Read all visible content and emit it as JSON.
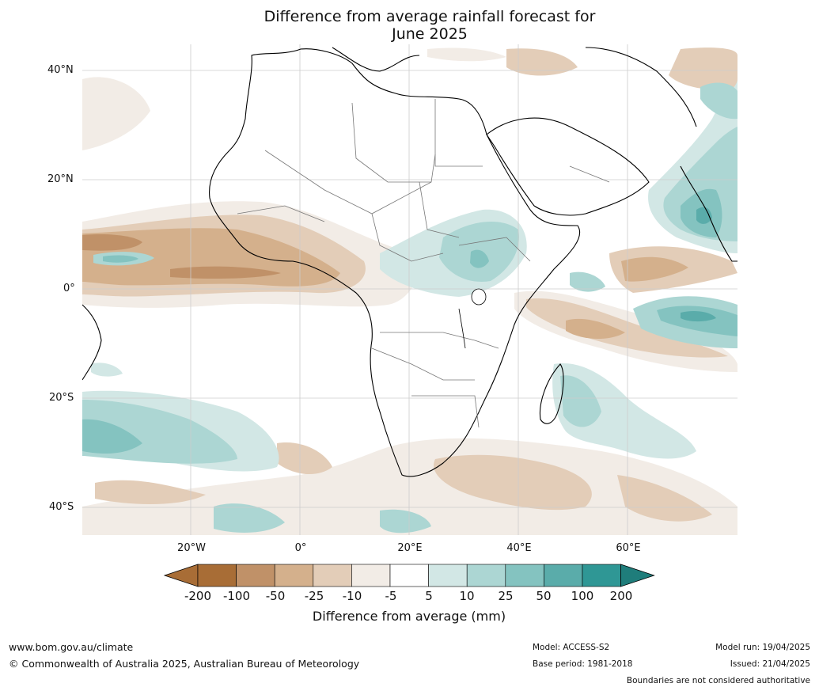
{
  "title_line1": "Difference from average rainfall forecast for",
  "title_line2": "June 2025",
  "lat_labels": [
    "40°N",
    "20°N",
    "0°",
    "20°S",
    "40°S"
  ],
  "lon_labels": [
    "20°W",
    "0°",
    "20°E",
    "40°E",
    "60°E"
  ],
  "colorbar": {
    "labels": [
      "-200",
      "-100",
      "-50",
      "-25",
      "-10",
      "-5",
      "5",
      "10",
      "25",
      "50",
      "100",
      "200"
    ],
    "colors": [
      "#a86d36",
      "#c09168",
      "#d4b08c",
      "#e3cdb8",
      "#f2ece6",
      "#ffffff",
      "#d2e7e5",
      "#acd6d3",
      "#84c3c0",
      "#5aacaa",
      "#2f9795"
    ],
    "extend_low_color": "#a86d36",
    "extend_high_color": "#1f7d7b",
    "title": "Difference from average (mm)"
  },
  "footer": {
    "url": "www.bom.gov.au/climate",
    "copyright": "© Commonwealth of Australia 2025, Australian Bureau of Meteorology",
    "model": "Model: ACCESS-S2",
    "base_period": "Base period: 1981-2018",
    "model_run": "Model run: 19/04/2025",
    "issued": "Issued: 21/04/2025",
    "disclaimer": "Boundaries are not considered authoritative"
  }
}
